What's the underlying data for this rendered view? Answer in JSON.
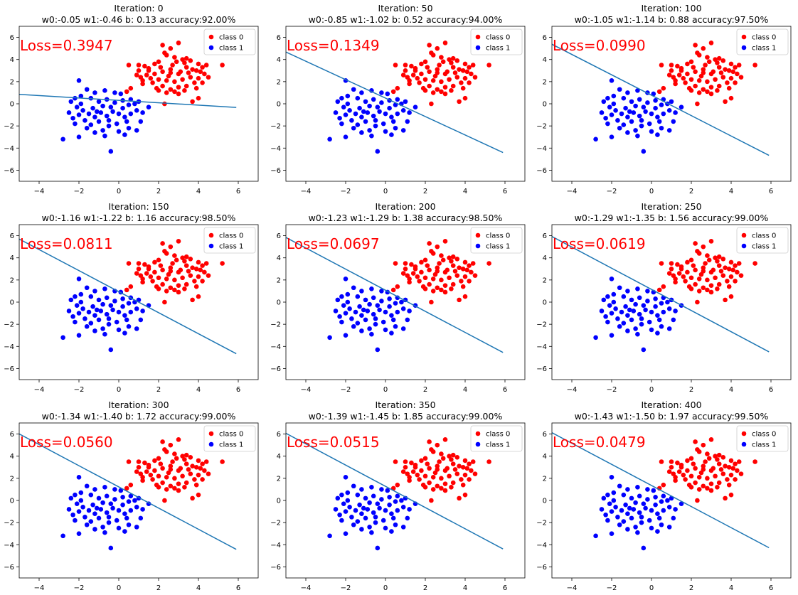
{
  "figure": {
    "background": "#ffffff"
  },
  "chart_data": [
    {
      "type": "scatter",
      "title_line1": "Iteration: 0",
      "title_line2": "w0:-0.05 w1:-0.46 b: 0.13 accuracy:92.00%",
      "loss_label": "Loss=0.3947",
      "decision_line": {
        "x": [
          -5.0,
          5.9
        ],
        "y": [
          0.85,
          -0.33
        ]
      }
    },
    {
      "type": "scatter",
      "title_line1": "Iteration: 50",
      "title_line2": "w0:-0.85 w1:-1.02 b: 0.52 accuracy:94.00%",
      "loss_label": "Loss=0.1349",
      "decision_line": {
        "x": [
          -5.0,
          5.9
        ],
        "y": [
          4.68,
          -4.4
        ]
      }
    },
    {
      "type": "scatter",
      "title_line1": "Iteration: 100",
      "title_line2": "w0:-1.05 w1:-1.14 b: 0.88 accuracy:97.50%",
      "loss_label": "Loss=0.0990",
      "decision_line": {
        "x": [
          -5.0,
          5.9
        ],
        "y": [
          5.38,
          -4.66
        ]
      }
    },
    {
      "type": "scatter",
      "title_line1": "Iteration: 150",
      "title_line2": "w0:-1.16 w1:-1.22 b: 1.16 accuracy:98.50%",
      "loss_label": "Loss=0.0811",
      "decision_line": {
        "x": [
          -5.0,
          5.9
        ],
        "y": [
          5.7,
          -4.66
        ]
      }
    },
    {
      "type": "scatter",
      "title_line1": "Iteration: 200",
      "title_line2": "w0:-1.23 w1:-1.29 b: 1.38 accuracy:98.50%",
      "loss_label": "Loss=0.0697",
      "decision_line": {
        "x": [
          -5.0,
          5.9
        ],
        "y": [
          5.84,
          -4.55
        ]
      }
    },
    {
      "type": "scatter",
      "title_line1": "Iteration: 250",
      "title_line2": "w0:-1.29 w1:-1.35 b: 1.56 accuracy:99.00%",
      "loss_label": "Loss=0.0619",
      "decision_line": {
        "x": [
          -5.0,
          5.9
        ],
        "y": [
          5.93,
          -4.49
        ]
      }
    },
    {
      "type": "scatter",
      "title_line1": "Iteration: 300",
      "title_line2": "w0:-1.34 w1:-1.40 b: 1.72 accuracy:99.00%",
      "loss_label": "Loss=0.0560",
      "decision_line": {
        "x": [
          -5.0,
          5.9
        ],
        "y": [
          6.01,
          -4.42
        ]
      }
    },
    {
      "type": "scatter",
      "title_line1": "Iteration: 350",
      "title_line2": "w0:-1.39 w1:-1.45 b: 1.85 accuracy:99.00%",
      "loss_label": "Loss=0.0515",
      "decision_line": {
        "x": [
          -5.0,
          5.9
        ],
        "y": [
          6.07,
          -4.38
        ]
      }
    },
    {
      "type": "scatter",
      "title_line1": "Iteration: 400",
      "title_line2": "w0:-1.43 w1:-1.50 b: 1.97 accuracy:99.50%",
      "loss_label": "Loss=0.0479",
      "decision_line": {
        "x": [
          -5.0,
          5.9
        ],
        "y": [
          6.12,
          -4.27
        ]
      }
    }
  ],
  "shared": {
    "xlim": [
      -5.0,
      7.0
    ],
    "ylim": [
      -7.0,
      7.0
    ],
    "x_ticks": [
      -4,
      -2,
      0,
      2,
      4,
      6
    ],
    "y_ticks": [
      -6,
      -4,
      -2,
      0,
      2,
      4,
      6
    ],
    "legend": {
      "position": "top-right",
      "entries": [
        {
          "label": "class 0",
          "color": "#ff0000"
        },
        {
          "label": "class 1",
          "color": "#0000ff"
        }
      ]
    },
    "colors": {
      "class0": "#ff0000",
      "class1": "#0000ff",
      "line": "#1f77b4",
      "loss_text": "#ff0000"
    },
    "series": [
      {
        "name": "class 0",
        "color": "#ff0000",
        "points": [
          [
            0.5,
            3.5
          ],
          [
            1.0,
            3.5
          ],
          [
            1.3,
            3.4
          ],
          [
            1.5,
            3.2
          ],
          [
            1.8,
            3.6
          ],
          [
            2.0,
            3.8
          ],
          [
            2.2,
            5.3
          ],
          [
            2.6,
            5.0
          ],
          [
            3.0,
            5.5
          ],
          [
            2.4,
            4.4
          ],
          [
            2.8,
            4.2
          ],
          [
            3.2,
            4.0
          ],
          [
            3.6,
            3.9
          ],
          [
            4.0,
            3.6
          ],
          [
            4.2,
            3.3
          ],
          [
            3.9,
            3.0
          ],
          [
            3.4,
            3.3
          ],
          [
            3.1,
            2.9
          ],
          [
            2.6,
            2.8
          ],
          [
            2.2,
            2.9
          ],
          [
            1.8,
            2.7
          ],
          [
            1.4,
            2.6
          ],
          [
            1.1,
            2.4
          ],
          [
            0.9,
            2.6
          ],
          [
            1.2,
            2.1
          ],
          [
            1.6,
            2.3
          ],
          [
            2.0,
            2.2
          ],
          [
            2.4,
            2.1
          ],
          [
            2.8,
            2.0
          ],
          [
            3.2,
            2.2
          ],
          [
            3.6,
            2.4
          ],
          [
            4.0,
            2.3
          ],
          [
            4.3,
            2.7
          ],
          [
            4.5,
            2.4
          ],
          [
            3.8,
            1.9
          ],
          [
            3.4,
            1.6
          ],
          [
            3.0,
            1.5
          ],
          [
            2.6,
            1.3
          ],
          [
            2.2,
            1.6
          ],
          [
            1.9,
            1.4
          ],
          [
            2.4,
            1.0
          ],
          [
            2.8,
            1.1
          ],
          [
            3.3,
            1.2
          ],
          [
            3.0,
            0.9
          ],
          [
            4.0,
            0.5
          ],
          [
            3.7,
            0.2
          ],
          [
            2.3,
            0.0
          ],
          [
            1.2,
            1.8
          ],
          [
            0.6,
            1.4
          ],
          [
            0.4,
            1.1
          ],
          [
            1.5,
            3.0
          ],
          [
            2.1,
            3.3
          ],
          [
            2.7,
            3.5
          ],
          [
            3.3,
            3.7
          ],
          [
            3.7,
            3.1
          ],
          [
            4.1,
            2.9
          ],
          [
            4.4,
            3.5
          ],
          [
            5.2,
            3.5
          ],
          [
            2.5,
            2.5
          ],
          [
            3.0,
            2.7
          ],
          [
            3.5,
            2.8
          ],
          [
            1.7,
            1.9
          ],
          [
            2.9,
            3.8
          ],
          [
            2.3,
            4.6
          ],
          [
            3.4,
            4.1
          ],
          [
            1.0,
            3.0
          ],
          [
            2.0,
            1.2
          ],
          [
            3.9,
            1.4
          ],
          [
            4.2,
            1.9
          ],
          [
            2.6,
            3.1
          ]
        ]
      },
      {
        "name": "class 1",
        "color": "#0000ff",
        "points": [
          [
            -2.8,
            -3.2
          ],
          [
            -2.0,
            -3.0
          ],
          [
            -1.6,
            -2.2
          ],
          [
            -1.2,
            -2.6
          ],
          [
            -0.8,
            -2.4
          ],
          [
            -0.5,
            -2.0
          ],
          [
            -0.4,
            -4.3
          ],
          [
            0.3,
            -2.8
          ],
          [
            0.5,
            -2.2
          ],
          [
            0.9,
            -2.4
          ],
          [
            1.1,
            -1.6
          ],
          [
            1.2,
            -0.8
          ],
          [
            1.5,
            -0.3
          ],
          [
            0.8,
            0.0
          ],
          [
            0.6,
            0.4
          ],
          [
            0.2,
            0.3
          ],
          [
            -0.2,
            0.1
          ],
          [
            -0.6,
            0.4
          ],
          [
            -1.0,
            0.2
          ],
          [
            -1.4,
            0.5
          ],
          [
            -1.9,
            0.7
          ],
          [
            -2.2,
            0.5
          ],
          [
            -2.4,
            0.2
          ],
          [
            -2.1,
            -0.3
          ],
          [
            -1.8,
            -0.6
          ],
          [
            -1.5,
            -0.9
          ],
          [
            -1.2,
            -1.2
          ],
          [
            -0.9,
            -0.8
          ],
          [
            -0.6,
            -1.1
          ],
          [
            -0.3,
            -0.7
          ],
          [
            0.0,
            -0.9
          ],
          [
            0.3,
            -1.2
          ],
          [
            0.6,
            -0.9
          ],
          [
            0.9,
            -0.6
          ],
          [
            -2.0,
            2.1
          ],
          [
            -1.6,
            1.3
          ],
          [
            -1.2,
            1.0
          ],
          [
            -0.7,
            1.2
          ],
          [
            -0.2,
            1.0
          ],
          [
            0.1,
            0.9
          ],
          [
            -1.7,
            -1.5
          ],
          [
            -2.2,
            -1.8
          ],
          [
            -1.4,
            -1.9
          ],
          [
            -1.0,
            -1.6
          ],
          [
            -0.5,
            -1.5
          ],
          [
            -0.1,
            -1.8
          ],
          [
            0.4,
            -1.6
          ],
          [
            -2.0,
            -1.0
          ],
          [
            -1.3,
            -0.4
          ],
          [
            -0.8,
            -0.2
          ],
          [
            -0.4,
            -0.3
          ],
          [
            0.2,
            -0.4
          ],
          [
            0.5,
            -0.1
          ],
          [
            1.0,
            0.2
          ],
          [
            -2.5,
            -0.8
          ],
          [
            -2.3,
            -1.3
          ],
          [
            -0.7,
            -2.9
          ],
          [
            0.0,
            -2.5
          ],
          [
            -1.9,
            0.0
          ],
          [
            -1.1,
            -0.7
          ]
        ]
      }
    ]
  }
}
